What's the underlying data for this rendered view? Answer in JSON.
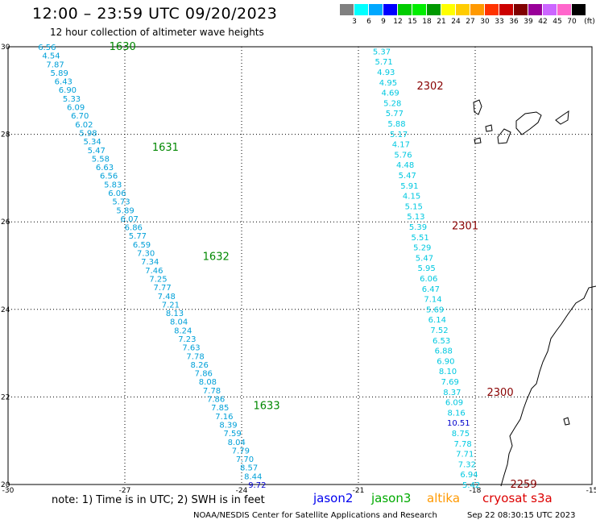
{
  "title": "12:00 – 23:59 UTC 09/20/2023",
  "subtitle": "12 hour collection of altimeter wave heights",
  "legend": {
    "unit": "(ft)",
    "colors": [
      "#808080",
      "#00ffff",
      "#00a8ff",
      "#0000ff",
      "#00cc00",
      "#00ee00",
      "#009900",
      "#ffff00",
      "#ffcc00",
      "#ff9900",
      "#ff3300",
      "#cc0000",
      "#800000",
      "#990099",
      "#cc66ff",
      "#ff66cc",
      "#000000"
    ],
    "ticks": [
      "3",
      "6",
      "9",
      "12",
      "15",
      "18",
      "21",
      "24",
      "27",
      "30",
      "33",
      "36",
      "39",
      "42",
      "45",
      "70"
    ]
  },
  "axes": {
    "lon_labels": [
      "-30",
      "-27",
      "-24",
      "-21",
      "-18",
      "-15"
    ],
    "lat_labels": [
      "30",
      "28",
      "26",
      "24",
      "22",
      "20"
    ],
    "lon_range": [
      -30,
      -15
    ],
    "lat_range": [
      20,
      30
    ]
  },
  "tracks": [
    {
      "satellite": "jason3",
      "color": "#00a0d8",
      "start": [
        -29.0,
        30.0
      ],
      "end": [
        -23.6,
        20.0
      ],
      "values": [
        "6.56",
        "4.54",
        "7.87",
        "5.89",
        "6.43",
        "6.90",
        "5.33",
        "6.09",
        "6.70",
        "6.02",
        "5.98",
        "5.34",
        "5.47",
        "5.58",
        "6.63",
        "6.56",
        "5.83",
        "6.06",
        "5.73",
        "5.89",
        "6.07",
        "6.86",
        "5.77",
        "6.59",
        "7.30",
        "7.34",
        "7.46",
        "7.25",
        "7.77",
        "7.48",
        "7.21",
        "8.13",
        "8.04",
        "8.24",
        "7.23",
        "7.63",
        "7.78",
        "8.26",
        "7.86",
        "8.08",
        "7.78",
        "7.86",
        "7.85",
        "7.16",
        "8.39",
        "7.59",
        "8.04",
        "7.79",
        "7.70",
        "8.57",
        "8.44",
        "9.72"
      ],
      "time_labels": [
        {
          "text": "1630",
          "lon": -27.4,
          "lat": 30.0
        },
        {
          "text": "1631",
          "lon": -26.3,
          "lat": 27.7
        },
        {
          "text": "1632",
          "lon": -25.0,
          "lat": 25.2
        },
        {
          "text": "1633",
          "lon": -23.7,
          "lat": 21.8
        }
      ],
      "time_color": "#008800"
    },
    {
      "satellite": "cryosat s3a",
      "color": "#00c8e0",
      "start": [
        -20.4,
        29.9
      ],
      "end": [
        -18.1,
        20.0
      ],
      "values": [
        "5.37",
        "5.71",
        "4.93",
        "4.95",
        "4.69",
        "5.28",
        "5.77",
        "5.88",
        "5.17",
        "4.17",
        "5.76",
        "4.48",
        "5.47",
        "5.91",
        "4.15",
        "5.15",
        "5.13",
        "5.39",
        "5.51",
        "5.29",
        "5.47",
        "5.95",
        "6.06",
        "6.47",
        "7.14",
        "5.69",
        "6.14",
        "7.52",
        "6.53",
        "6.88",
        "6.90",
        "8.10",
        "7.69",
        "8.37",
        "6.09",
        "8.16",
        "10.51",
        "8.75",
        "7.78",
        "7.71",
        "7.32",
        "6.94",
        "5.42"
      ],
      "time_labels": [
        {
          "text": "2302",
          "lon": -19.5,
          "lat": 29.1
        },
        {
          "text": "2301",
          "lon": -18.6,
          "lat": 25.9
        },
        {
          "text": "2300",
          "lon": -17.7,
          "lat": 22.1
        },
        {
          "text": "2259",
          "lon": -17.1,
          "lat": 20.0
        }
      ],
      "time_color": "#880000"
    }
  ],
  "note": "note:  1) Time is in UTC;  2) SWH is in feet",
  "satellites": [
    {
      "name": "jason2",
      "color": "#0000ee"
    },
    {
      "name": "jason3",
      "color": "#00aa00"
    },
    {
      "name": "altika",
      "color": "#ff9900"
    },
    {
      "name": "cryosat s3a",
      "color": "#dd0000"
    }
  ],
  "footer": {
    "left": "NOAA/NESDIS Center for Satellite Applications and Research",
    "right": "Sep 22 08:30:15 UTC 2023"
  }
}
